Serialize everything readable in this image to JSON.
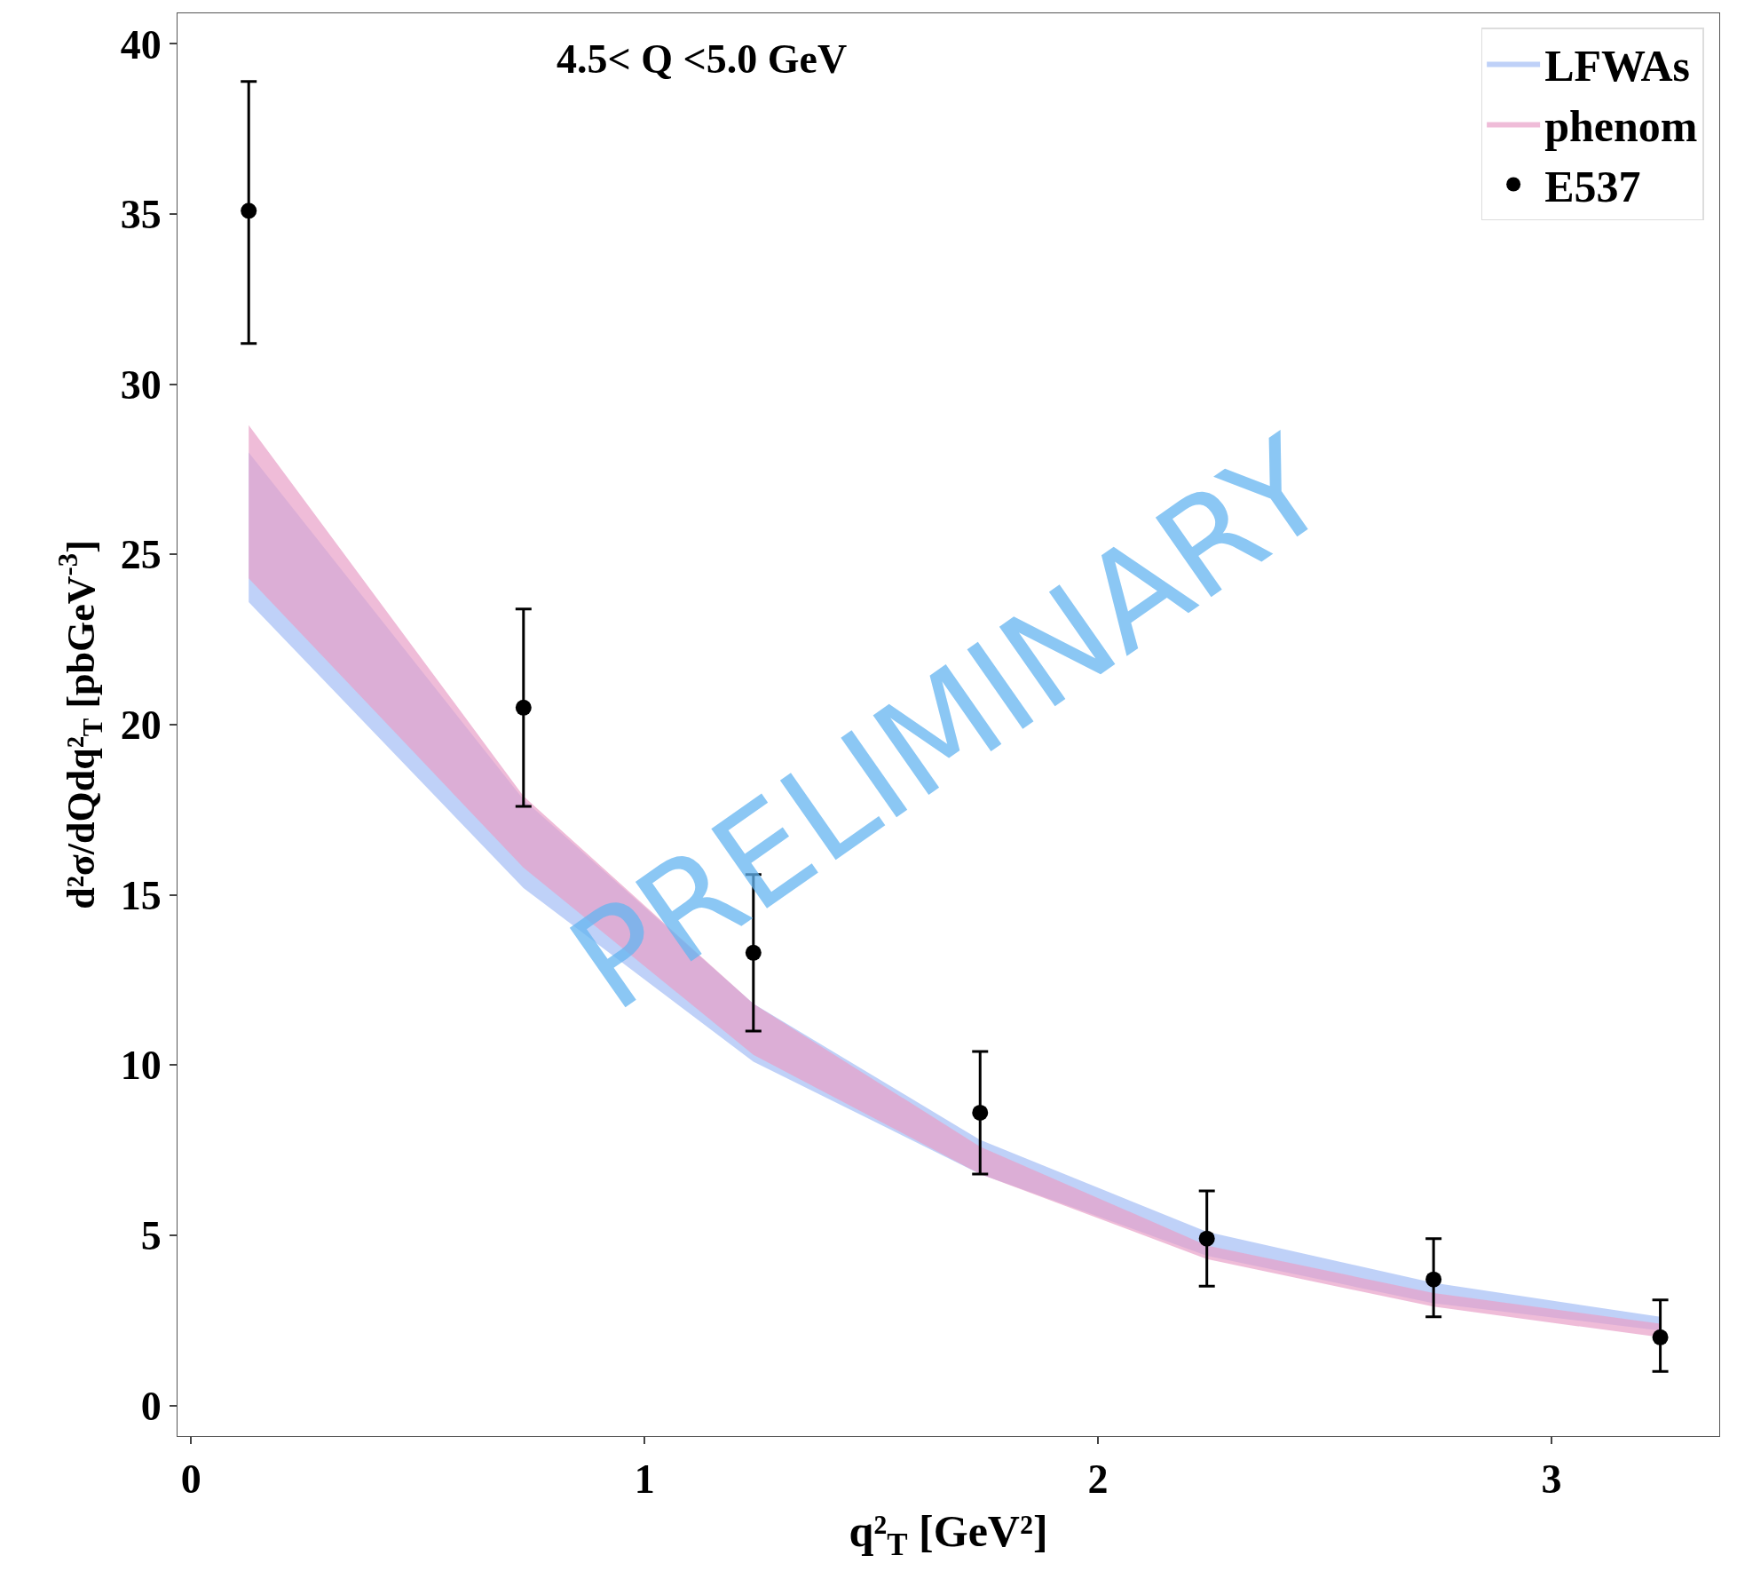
{
  "chart_data": {
    "type": "scatter",
    "xlabel": "q²$_{T}$ [GeV²]",
    "ylabel": "d²σ/dQdq²$_{T}$ [pbGeV$^{-3}$]",
    "annotations": [
      "4.5< Q <5.0 GeV",
      "PRELIMINARY"
    ],
    "xlim": [
      -0.03,
      3.37
    ],
    "xticks": [
      0,
      1,
      2,
      3
    ],
    "ylim": [
      -0.9,
      40.9
    ],
    "yticks": [
      0,
      5,
      10,
      15,
      20,
      25,
      30,
      35,
      40
    ],
    "legend": "top right",
    "marker": "circle",
    "series": [
      {
        "name": "LFWAs",
        "type": "area",
        "color": "#a4bdf5",
        "x": [
          0.127,
          0.733,
          1.24,
          1.74,
          2.24,
          2.74,
          3.24
        ],
        "values": [
          null,
          null,
          null,
          null,
          null,
          null,
          null
        ],
        "lower": [
          23.6,
          15.2,
          10.1,
          6.8,
          4.4,
          3.0,
          2.2
        ],
        "upper": [
          28.0,
          17.8,
          11.8,
          7.8,
          5.1,
          3.6,
          2.6
        ]
      },
      {
        "name": "phenom",
        "type": "area",
        "color": "#e8a0c8",
        "x": [
          0.127,
          0.733,
          1.24,
          1.74,
          2.24,
          2.74,
          3.24
        ],
        "values": [
          null,
          null,
          null,
          null,
          null,
          null,
          null
        ],
        "lower": [
          24.3,
          15.8,
          10.3,
          6.8,
          4.3,
          2.9,
          2.0
        ],
        "upper": [
          28.8,
          17.9,
          11.8,
          7.6,
          4.7,
          3.3,
          2.4
        ]
      },
      {
        "name": "E537",
        "color": "#000000",
        "x": [
          0.127,
          0.733,
          1.24,
          1.74,
          2.24,
          2.74,
          3.24
        ],
        "values": [
          35.1,
          20.5,
          13.3,
          8.6,
          4.9,
          3.7,
          2.0
        ],
        "errors": [
          [
            31.2,
            38.9
          ],
          [
            17.6,
            23.4
          ],
          [
            11.0,
            15.6
          ],
          [
            6.8,
            10.4
          ],
          [
            3.5,
            6.3
          ],
          [
            2.6,
            4.9
          ],
          [
            1.0,
            3.1
          ]
        ]
      }
    ]
  }
}
